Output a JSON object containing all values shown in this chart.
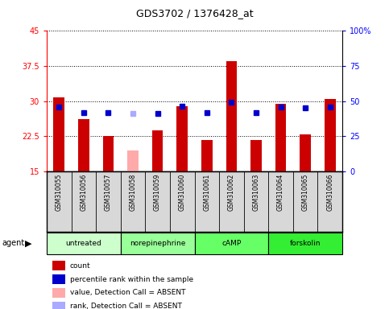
{
  "title": "GDS3702 / 1376428_at",
  "samples": [
    "GSM310055",
    "GSM310056",
    "GSM310057",
    "GSM310058",
    "GSM310059",
    "GSM310060",
    "GSM310061",
    "GSM310062",
    "GSM310063",
    "GSM310064",
    "GSM310065",
    "GSM310066"
  ],
  "bar_values": [
    30.8,
    26.2,
    22.5,
    19.5,
    23.8,
    29.0,
    21.8,
    38.5,
    21.8,
    29.5,
    23.0,
    30.5
  ],
  "bar_absent": [
    false,
    false,
    false,
    true,
    false,
    false,
    false,
    false,
    false,
    false,
    false,
    false
  ],
  "dot_values": [
    28.8,
    27.6,
    27.5,
    27.4,
    27.3,
    28.9,
    27.5,
    29.8,
    27.6,
    28.7,
    28.5,
    28.8
  ],
  "dot_absent": [
    false,
    false,
    false,
    true,
    false,
    false,
    false,
    false,
    false,
    false,
    false,
    false
  ],
  "ylim_left": [
    15,
    45
  ],
  "ylim_right": [
    0,
    100
  ],
  "yticks_left": [
    15,
    22.5,
    30,
    37.5,
    45
  ],
  "yticks_right": [
    0,
    25,
    50,
    75,
    100
  ],
  "ytick_labels_left": [
    "15",
    "22.5",
    "30",
    "37.5",
    "45"
  ],
  "ytick_labels_right": [
    "0",
    "25",
    "50",
    "75",
    "100%"
  ],
  "groups": [
    {
      "label": "untreated",
      "start": 0,
      "end": 3,
      "color": "#ccffcc"
    },
    {
      "label": "norepinephrine",
      "start": 3,
      "end": 6,
      "color": "#99ff99"
    },
    {
      "label": "cAMP",
      "start": 6,
      "end": 9,
      "color": "#66ff66"
    },
    {
      "label": "forskolin",
      "start": 9,
      "end": 12,
      "color": "#33ee33"
    }
  ],
  "bar_color": "#cc0000",
  "bar_absent_color": "#ffaaaa",
  "dot_color": "#0000cc",
  "dot_absent_color": "#aaaaff",
  "bg_color": "#ffffff",
  "legend_items": [
    {
      "label": "count",
      "color": "#cc0000"
    },
    {
      "label": "percentile rank within the sample",
      "color": "#0000cc"
    },
    {
      "label": "value, Detection Call = ABSENT",
      "color": "#ffaaaa"
    },
    {
      "label": "rank, Detection Call = ABSENT",
      "color": "#aaaaff"
    }
  ]
}
